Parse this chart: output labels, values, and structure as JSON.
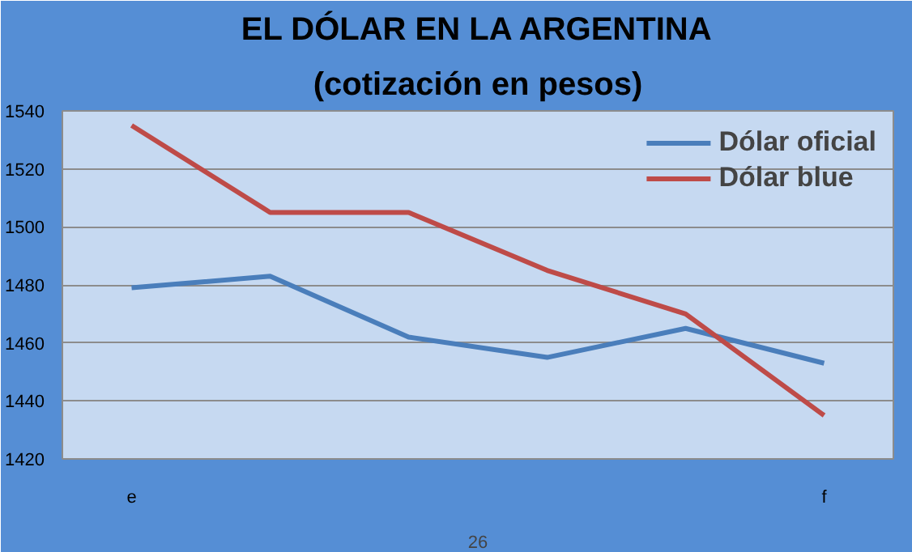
{
  "chart_data": {
    "type": "line",
    "title": "EL DÓLAR EN LA ARGENTINA",
    "subtitle": "(cotización en pesos)",
    "categories": [
      "e",
      null,
      null,
      null,
      null,
      "f"
    ],
    "series": [
      {
        "name": "Dólar oficial",
        "color": "#4a7ebb",
        "values": [
          1479,
          1483,
          1462,
          1455,
          1465,
          1453
        ]
      },
      {
        "name": "Dólar blue",
        "color": "#be4b48",
        "values": [
          1535,
          1505,
          1505,
          1485,
          1470,
          1435
        ]
      }
    ],
    "ylim": [
      1420,
      1540
    ],
    "yticks": [
      1420,
      1440,
      1460,
      1480,
      1500,
      1520,
      1540
    ],
    "grid": "y",
    "legend": "top right",
    "annotations": [
      "26"
    ]
  }
}
